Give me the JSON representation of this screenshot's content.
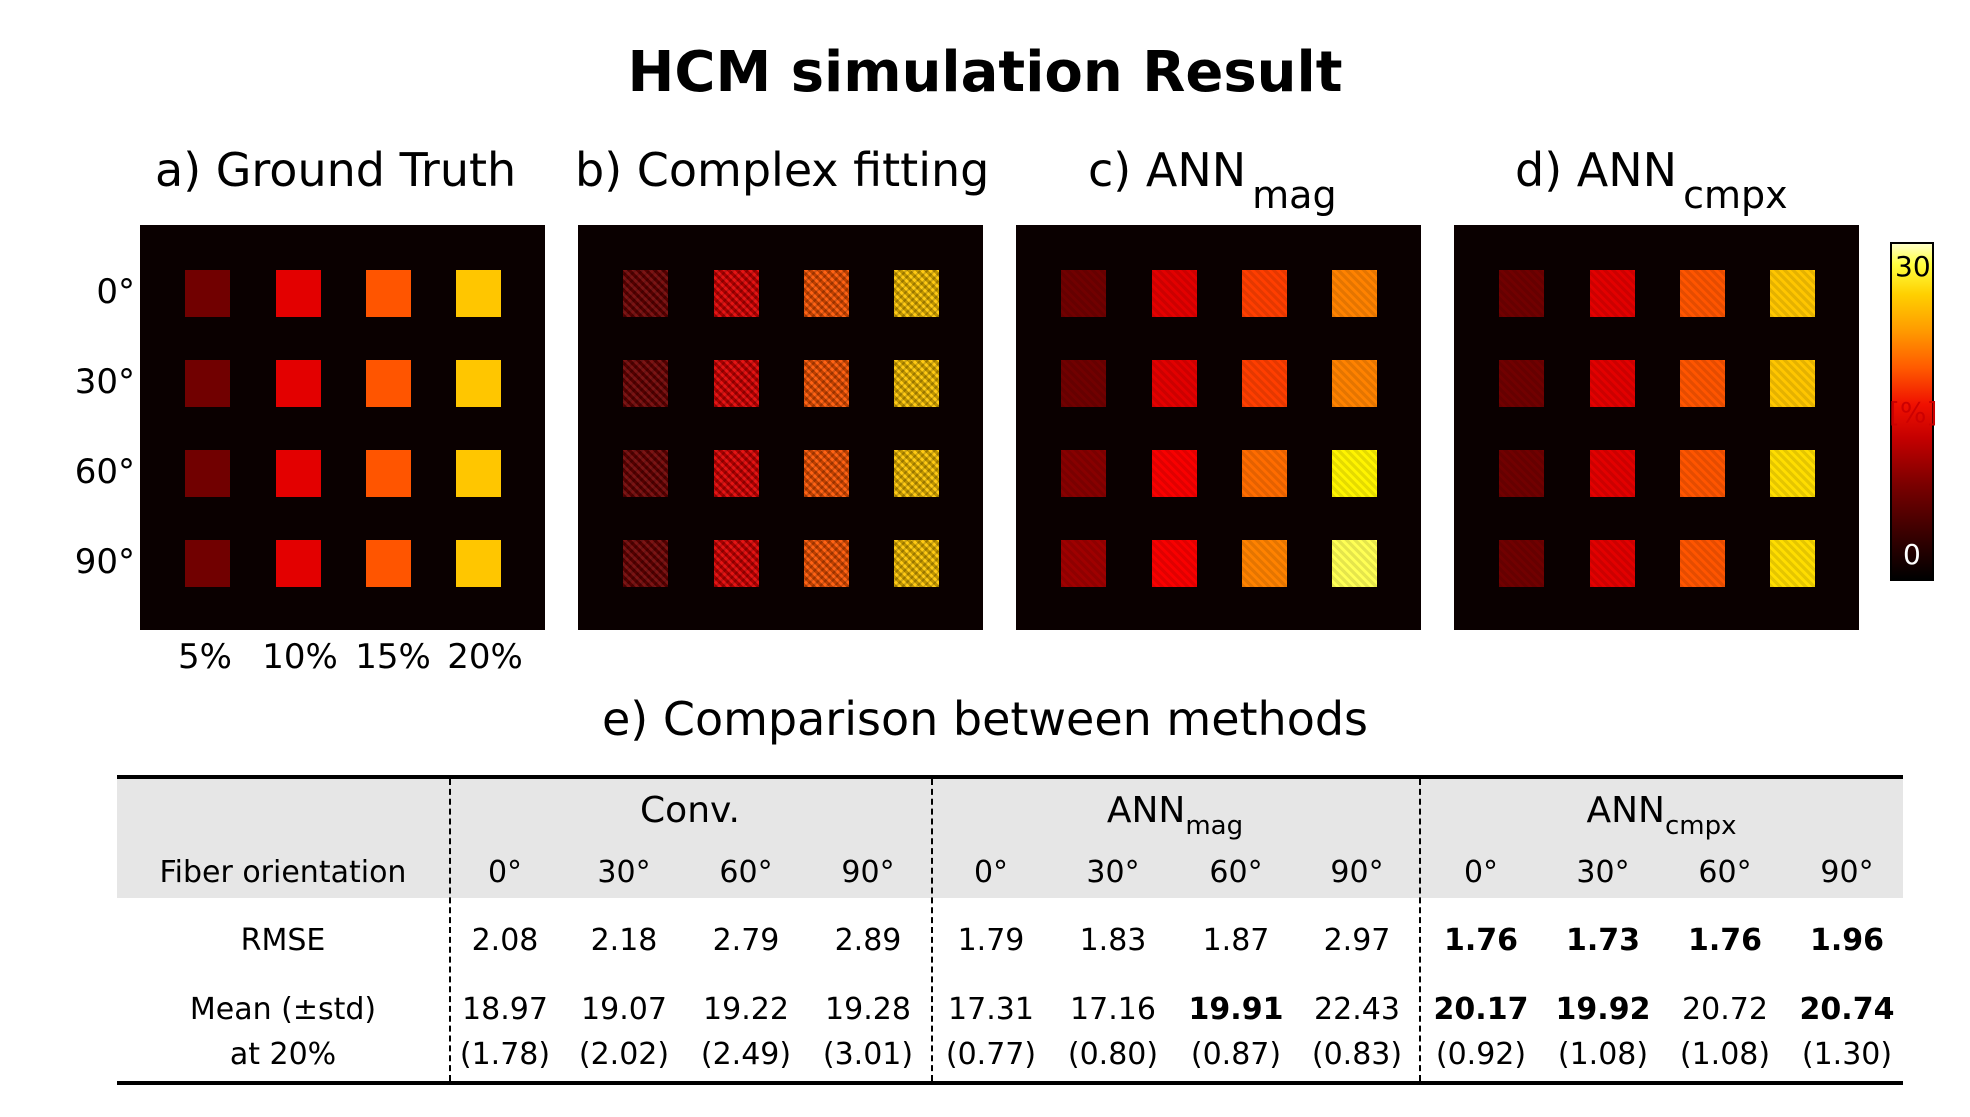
{
  "title": "HCM simulation Result",
  "panels": [
    {
      "label": "a) Ground Truth",
      "sub": ""
    },
    {
      "label": "b) Complex fitting",
      "sub": ""
    },
    {
      "label": "c) ANN",
      "sub": "mag"
    },
    {
      "label": "d) ANN",
      "sub": "cmpx"
    }
  ],
  "row_labels": [
    "0°",
    "30°",
    "60°",
    "90°"
  ],
  "col_labels": [
    "5%",
    "10%",
    "15%",
    "20%"
  ],
  "colorbar": {
    "max": "30",
    "unit": "[%]",
    "min": "0"
  },
  "chart_data": {
    "type": "heatmap",
    "title": "HCM simulation Result",
    "rows": [
      "0°",
      "30°",
      "60°",
      "90°"
    ],
    "columns": [
      "5%",
      "10%",
      "15%",
      "20%"
    ],
    "range": [
      0,
      30
    ],
    "unit": "[%]",
    "maps": [
      {
        "name": "a) Ground Truth",
        "values": [
          [
            5,
            10,
            15,
            20
          ],
          [
            5,
            10,
            15,
            20
          ],
          [
            5,
            10,
            15,
            20
          ],
          [
            5,
            10,
            15,
            20
          ]
        ]
      },
      {
        "name": "b) Complex fitting",
        "values": [
          [
            5,
            10,
            15,
            20
          ],
          [
            5,
            10,
            15,
            20
          ],
          [
            5,
            10,
            15,
            20
          ],
          [
            5,
            10,
            15,
            20
          ]
        ]
      },
      {
        "name": "c) ANN mag",
        "values": [
          [
            5,
            10,
            14,
            17
          ],
          [
            5,
            10,
            14,
            17
          ],
          [
            6,
            11,
            16,
            22
          ],
          [
            7,
            11,
            17,
            25
          ]
        ]
      },
      {
        "name": "d) ANN cmpx",
        "values": [
          [
            5,
            10,
            15,
            20
          ],
          [
            5,
            10,
            15,
            20
          ],
          [
            5,
            10,
            15,
            21
          ],
          [
            5,
            10,
            15,
            21
          ]
        ]
      }
    ]
  },
  "table": {
    "title": "e) Comparison between methods",
    "groups": [
      {
        "name": "Conv.",
        "sub": ""
      },
      {
        "name": "ANN",
        "sub": "mag"
      },
      {
        "name": "ANN",
        "sub": "cmpx"
      }
    ],
    "header_label": "Fiber orientation",
    "angles": [
      "0°",
      "30°",
      "60°",
      "90°",
      "0°",
      "30°",
      "60°",
      "90°",
      "0°",
      "30°",
      "60°",
      "90°"
    ],
    "rmse_label": "RMSE",
    "rmse": [
      "2.08",
      "2.18",
      "2.79",
      "2.89",
      "1.79",
      "1.83",
      "1.87",
      "2.97",
      "1.76",
      "1.73",
      "1.76",
      "1.96"
    ],
    "rmse_bold": [
      false,
      false,
      false,
      false,
      false,
      false,
      false,
      false,
      true,
      true,
      true,
      true
    ],
    "mean_label_1": "Mean (±std)",
    "mean_label_2": "at 20%",
    "mean": [
      "18.97",
      "19.07",
      "19.22",
      "19.28",
      "17.31",
      "17.16",
      "19.91",
      "22.43",
      "20.17",
      "19.92",
      "20.72",
      "20.74"
    ],
    "mean_bold": [
      false,
      false,
      false,
      false,
      false,
      false,
      true,
      false,
      true,
      true,
      false,
      true
    ],
    "std": [
      "(1.78)",
      "(2.02)",
      "(2.49)",
      "(3.01)",
      "(0.77)",
      "(0.80)",
      "(0.87)",
      "(0.83)",
      "(0.92)",
      "(1.08)",
      "(1.08)",
      "(1.30)"
    ]
  }
}
